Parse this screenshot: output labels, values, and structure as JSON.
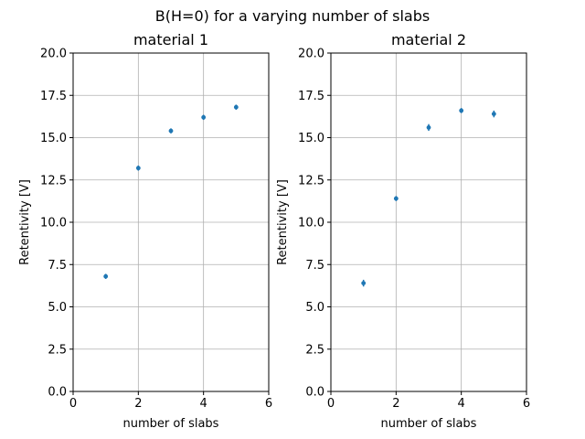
{
  "figure": {
    "suptitle": "B(H=0) for a varying number of slabs"
  },
  "chart_data": [
    {
      "type": "scatter",
      "title": "material 1",
      "xlabel": "number of slabs",
      "ylabel": "Retentivity [V]",
      "xlim": [
        0,
        6
      ],
      "ylim": [
        0,
        20
      ],
      "xticks": [
        "0",
        "2",
        "4",
        "6"
      ],
      "yticks": [
        "0.0",
        "2.5",
        "5.0",
        "7.5",
        "10.0",
        "12.5",
        "15.0",
        "17.5",
        "20.0"
      ],
      "grid": true,
      "color": "#1f77b4",
      "series": [
        {
          "x": [
            1,
            2,
            3,
            4,
            5
          ],
          "y": [
            6.8,
            13.2,
            15.4,
            16.2,
            16.8
          ],
          "yerr": [
            0.15,
            0.15,
            0.15,
            0.15,
            0.15
          ]
        }
      ]
    },
    {
      "type": "scatter",
      "title": "material 2",
      "xlabel": "number of slabs",
      "ylabel": "Retentivity [V]",
      "xlim": [
        0,
        6
      ],
      "ylim": [
        0,
        20
      ],
      "xticks": [
        "0",
        "2",
        "4",
        "6"
      ],
      "yticks": [
        "0.0",
        "2.5",
        "5.0",
        "7.5",
        "10.0",
        "12.5",
        "15.0",
        "17.5",
        "20.0"
      ],
      "grid": true,
      "color": "#1f77b4",
      "series": [
        {
          "x": [
            1,
            2,
            3,
            4,
            5
          ],
          "y": [
            6.4,
            11.4,
            15.6,
            16.6,
            16.4
          ],
          "yerr": [
            0.2,
            0.15,
            0.2,
            0.15,
            0.2
          ]
        }
      ]
    }
  ]
}
